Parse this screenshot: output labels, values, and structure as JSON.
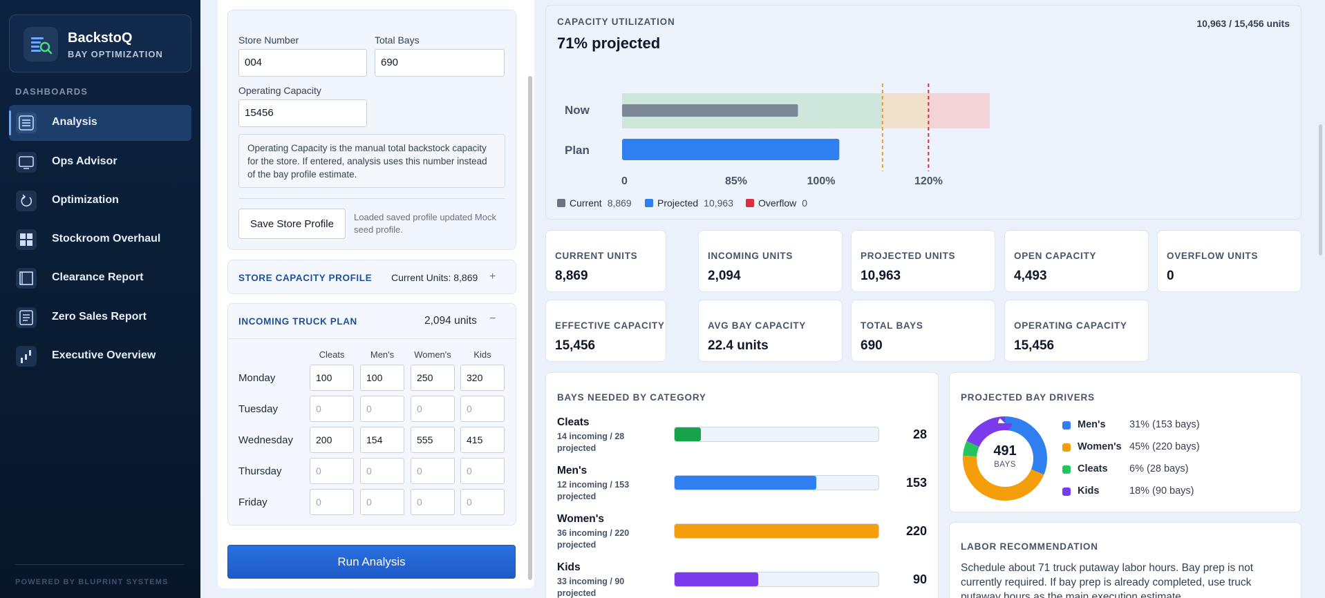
{
  "brand": {
    "name": "BackstoQ",
    "subtitle": "BAY OPTIMIZATION"
  },
  "nav": {
    "heading": "DASHBOARDS",
    "items": [
      {
        "label": "Analysis",
        "icon": "menu-lines-icon",
        "active": true
      },
      {
        "label": "Ops Advisor",
        "icon": "monitor-icon",
        "active": false
      },
      {
        "label": "Optimization",
        "icon": "refresh-icon",
        "active": false
      },
      {
        "label": "Stockroom Overhaul",
        "icon": "grid-icon",
        "active": false
      },
      {
        "label": "Clearance Report",
        "icon": "square-frame-icon",
        "active": false
      },
      {
        "label": "Zero Sales Report",
        "icon": "list-icon",
        "active": false
      },
      {
        "label": "Executive Overview",
        "icon": "bar-chart-icon",
        "active": false
      }
    ],
    "footer": "POWERED BY BLUPRINT SYSTEMS"
  },
  "store_profile": {
    "store_number_label": "Store Number",
    "store_number": "004",
    "total_bays_label": "Total Bays",
    "total_bays": "690",
    "operating_capacity_label": "Operating Capacity",
    "operating_capacity": "15456",
    "note": "Operating Capacity is the manual total backstock capacity for the store. If entered, analysis uses this number instead of the bay profile estimate.",
    "save_button": "Save Store Profile",
    "save_status": "Loaded saved profile updated Mock seed profile."
  },
  "capacity_profile": {
    "title": "STORE CAPACITY PROFILE",
    "meta": "Current Units: 8,869",
    "toggle": "+"
  },
  "truck_plan": {
    "title": "INCOMING TRUCK PLAN",
    "meta": "2,094 units",
    "toggle": "−",
    "columns": [
      "Cleats",
      "Men's",
      "Women's",
      "Kids"
    ],
    "rows": [
      {
        "day": "Monday",
        "values": [
          "100",
          "100",
          "250",
          "320"
        ]
      },
      {
        "day": "Tuesday",
        "values": [
          "0",
          "0",
          "0",
          "0"
        ]
      },
      {
        "day": "Wednesday",
        "values": [
          "200",
          "154",
          "555",
          "415"
        ]
      },
      {
        "day": "Thursday",
        "values": [
          "0",
          "0",
          "0",
          "0"
        ]
      },
      {
        "day": "Friday",
        "values": [
          "0",
          "0",
          "0",
          "0"
        ]
      }
    ]
  },
  "run_button": "Run Analysis",
  "utilization": {
    "title": "CAPACITY UTILIZATION",
    "headline": "71% projected",
    "ratio": "10,963 / 15,456 units",
    "rows": {
      "now": "Now",
      "plan": "Plan"
    },
    "now_pct": 57.4,
    "plan_pct": 70.9,
    "axis_max_pct": 120,
    "zones": [
      {
        "from": 0,
        "to": 85,
        "color": "#cfe6dc"
      },
      {
        "from": 85,
        "to": 100,
        "color": "#f1e0cc"
      },
      {
        "from": 100,
        "to": 120,
        "color": "#f3d3d6"
      }
    ],
    "ticks": [
      "0",
      "85%",
      "100%",
      "120%"
    ],
    "legend": [
      {
        "label": "Current",
        "value": "8,869",
        "color": "#6b7280"
      },
      {
        "label": "Projected",
        "value": "10,963",
        "color": "#2f7ff0"
      },
      {
        "label": "Overflow",
        "value": "0",
        "color": "#dc2f3a"
      }
    ]
  },
  "stats": [
    {
      "label": "CURRENT UNITS",
      "value": "8,869"
    },
    {
      "label": "INCOMING UNITS",
      "value": "2,094"
    },
    {
      "label": "PROJECTED UNITS",
      "value": "10,963"
    },
    {
      "label": "OPEN CAPACITY",
      "value": "4,493"
    },
    {
      "label": "OVERFLOW UNITS",
      "value": "0"
    },
    {
      "label": "EFFECTIVE CAPACITY",
      "value": "15,456"
    },
    {
      "label": "AVG BAY CAPACITY",
      "value": "22.4 units"
    },
    {
      "label": "TOTAL BAYS",
      "value": "690"
    },
    {
      "label": "OPERATING CAPACITY",
      "value": "15,456"
    }
  ],
  "bays_needed": {
    "title": "BAYS NEEDED BY CATEGORY",
    "max": 220,
    "items": [
      {
        "name": "Cleats",
        "sub": "14 incoming / 28 projected",
        "count": "28",
        "value": 28,
        "color": "#16a34a"
      },
      {
        "name": "Men's",
        "sub": "12 incoming / 153 projected",
        "count": "153",
        "value": 153,
        "color": "#2f7ff0"
      },
      {
        "name": "Women's",
        "sub": "36 incoming / 220 projected",
        "count": "220",
        "value": 220,
        "color": "#f59e0b"
      },
      {
        "name": "Kids",
        "sub": "33 incoming / 90 projected",
        "count": "90",
        "value": 90,
        "color": "#7c3aed"
      }
    ]
  },
  "drivers": {
    "title": "PROJECTED BAY DRIVERS",
    "center_value": "491",
    "center_label": "BAYS",
    "items": [
      {
        "name": "Men's",
        "value": "31% (153 bays)",
        "pct": 31.2,
        "color": "#2f7ff0"
      },
      {
        "name": "Women's",
        "value": "45% (220 bays)",
        "pct": 44.8,
        "color": "#f59e0b"
      },
      {
        "name": "Cleats",
        "value": "6% (28 bays)",
        "pct": 5.7,
        "color": "#22c55e"
      },
      {
        "name": "Kids",
        "value": "18% (90 bays)",
        "pct": 18.3,
        "color": "#7c3aed"
      }
    ]
  },
  "labor": {
    "title": "LABOR RECOMMENDATION",
    "text": "Schedule about 71 truck putaway labor hours. Bay prep is not currently required. If bay prep is already completed, use truck putaway hours as the main execution estimate."
  }
}
